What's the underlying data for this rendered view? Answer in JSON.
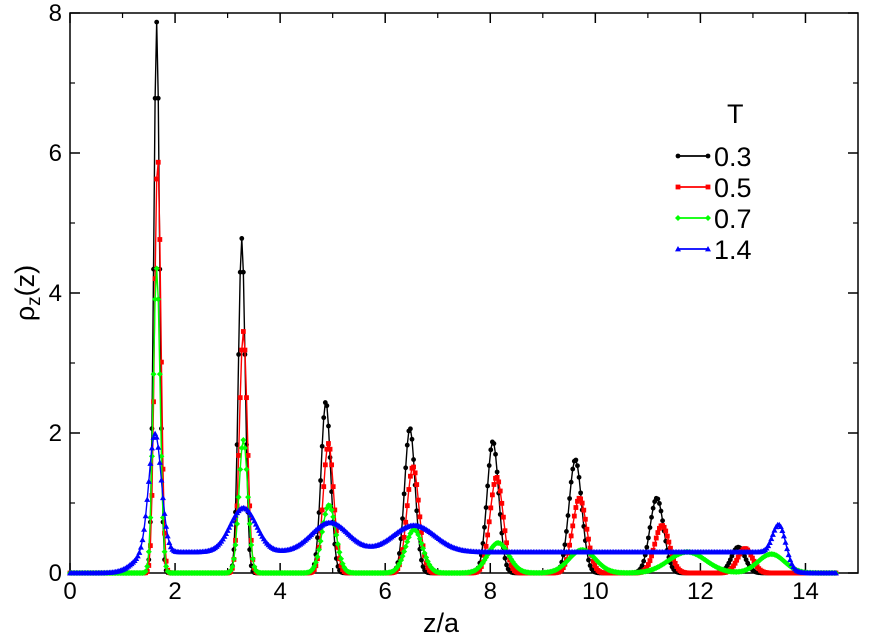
{
  "chart_data": {
    "type": "line",
    "title": "",
    "xlabel": "z/a",
    "ylabel_main": "ρ",
    "ylabel_sub": "z",
    "ylabel_tail": "(z)",
    "xlim": [
      0,
      15
    ],
    "ylim": [
      0,
      8
    ],
    "xticks": [
      0,
      2,
      4,
      6,
      8,
      10,
      12,
      14
    ],
    "yticks": [
      0,
      2,
      4,
      6,
      8
    ],
    "grid": false,
    "legend_position": "top-right",
    "legend_title": "T",
    "series": [
      {
        "name": "0.3",
        "color": "#000000",
        "marker": "circle",
        "baseline": 0.0,
        "peaks": [
          {
            "x": 1.65,
            "y": 7.87,
            "w": 0.055
          },
          {
            "x": 3.27,
            "y": 4.78,
            "w": 0.065
          },
          {
            "x": 4.87,
            "y": 2.45,
            "w": 0.09
          },
          {
            "x": 6.47,
            "y": 2.07,
            "w": 0.1
          },
          {
            "x": 8.05,
            "y": 1.88,
            "w": 0.11
          },
          {
            "x": 9.62,
            "y": 1.62,
            "w": 0.12
          },
          {
            "x": 11.17,
            "y": 1.07,
            "w": 0.13
          },
          {
            "x": 12.72,
            "y": 0.37,
            "w": 0.13
          }
        ],
        "x_start": 0.0,
        "x_end": 14.6
      },
      {
        "name": "0.5",
        "color": "#ff0000",
        "marker": "square",
        "baseline": 0.0,
        "peaks": [
          {
            "x": 1.67,
            "y": 5.95,
            "w": 0.06
          },
          {
            "x": 3.3,
            "y": 3.45,
            "w": 0.075
          },
          {
            "x": 4.92,
            "y": 1.85,
            "w": 0.1
          },
          {
            "x": 6.53,
            "y": 1.52,
            "w": 0.115
          },
          {
            "x": 8.12,
            "y": 1.37,
            "w": 0.125
          },
          {
            "x": 9.7,
            "y": 1.07,
            "w": 0.135
          },
          {
            "x": 11.27,
            "y": 0.68,
            "w": 0.14
          },
          {
            "x": 12.85,
            "y": 0.35,
            "w": 0.14
          }
        ],
        "x_start": 0.0,
        "x_end": 14.6
      },
      {
        "name": "0.7",
        "color": "#00ff00",
        "marker": "diamond",
        "baseline": 0.0,
        "peaks": [
          {
            "x": 1.65,
            "y": 4.35,
            "w": 0.065
          },
          {
            "x": 3.3,
            "y": 1.9,
            "w": 0.085
          },
          {
            "x": 4.93,
            "y": 0.97,
            "w": 0.13
          },
          {
            "x": 6.55,
            "y": 0.62,
            "w": 0.16
          },
          {
            "x": 8.15,
            "y": 0.43,
            "w": 0.2
          },
          {
            "x": 9.75,
            "y": 0.33,
            "w": 0.25
          },
          {
            "x": 11.75,
            "y": 0.3,
            "w": 0.35
          },
          {
            "x": 13.35,
            "y": 0.27,
            "w": 0.25
          }
        ],
        "x_start": 0.0,
        "x_end": 14.6
      },
      {
        "name": "1.4",
        "color": "#0000ff",
        "marker": "triangle",
        "baseline": 0.3,
        "peaks": [
          {
            "x": 1.62,
            "y": 1.7,
            "w": 0.12
          },
          {
            "x": 3.3,
            "y": 0.63,
            "w": 0.25
          },
          {
            "x": 4.95,
            "y": 0.42,
            "w": 0.35
          },
          {
            "x": 6.55,
            "y": 0.38,
            "w": 0.4
          },
          {
            "x": 13.5,
            "y": 0.43,
            "w": 0.12
          }
        ],
        "x_start": 0.0,
        "x_end": 14.6
      }
    ]
  }
}
